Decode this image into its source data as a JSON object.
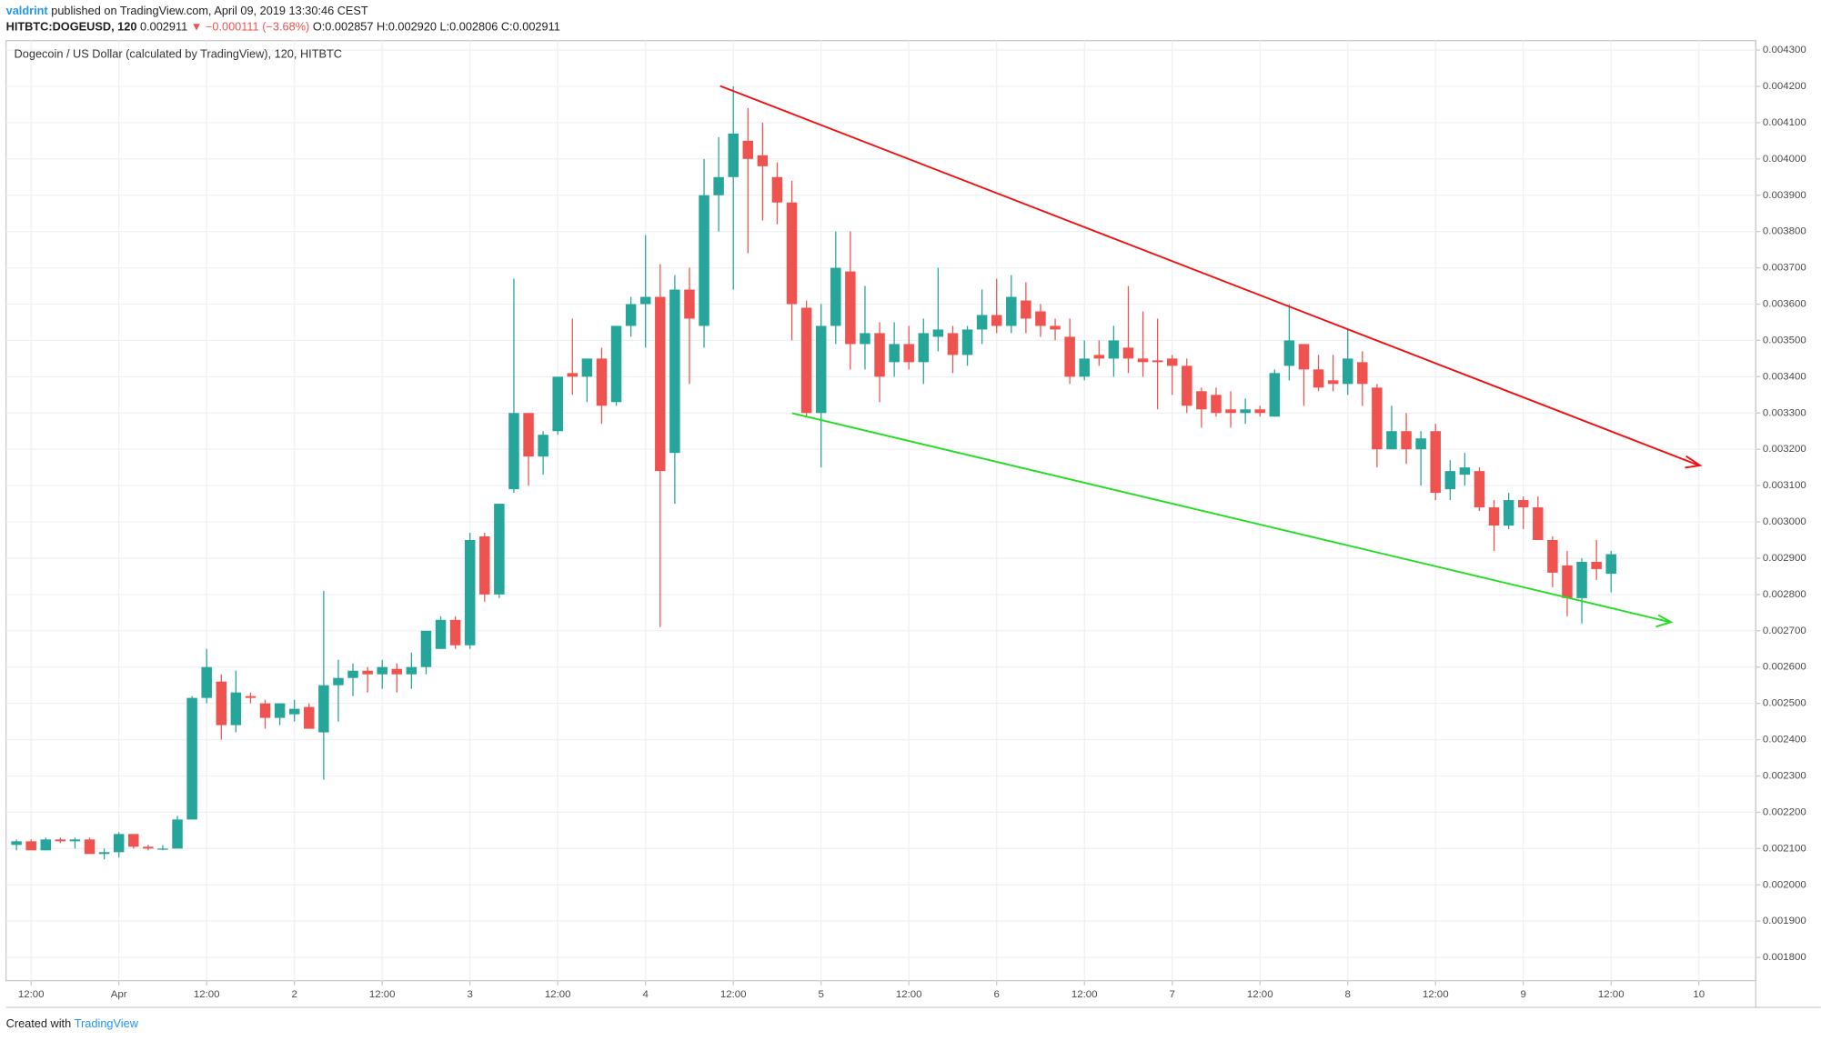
{
  "header": {
    "author": "valdrint",
    "published": "published on TradingView.com, April 09, 2019 13:30:46 CEST",
    "symbol": "HITBTC:DOGEUSD, 120",
    "last": "0.002911",
    "change": "▼ −0.000111 (−3.68%)",
    "ohlc": "O:0.002857 H:0.002920 L:0.002806 C:0.002911"
  },
  "footer": {
    "prefix": "Created with",
    "brand": "TradingView"
  },
  "chart_data": {
    "type": "candlestick",
    "title": "Dogecoin / US Dollar (calculated by TradingView), 120, HITBTC",
    "up_color": "#26a69a",
    "down_color": "#ef5350",
    "grid": true,
    "categories": [
      null,
      "12:00",
      null,
      null,
      null,
      null,
      null,
      "Apr",
      null,
      null,
      null,
      null,
      null,
      "12:00",
      null,
      null,
      null,
      null,
      null,
      "2",
      null,
      null,
      null,
      null,
      null,
      "12:00",
      null,
      null,
      null,
      null,
      null,
      "3",
      null,
      null,
      null,
      null,
      null,
      "12:00",
      null,
      null,
      null,
      null,
      null,
      "4",
      null,
      null,
      null,
      null,
      null,
      "12:00",
      null,
      null,
      null,
      null,
      null,
      "5",
      null,
      null,
      null,
      null,
      null,
      "12:00",
      null,
      null,
      null,
      null,
      null,
      "6",
      null,
      null,
      null,
      null,
      null,
      "12:00",
      null,
      null,
      null,
      null,
      null,
      "7",
      null,
      null,
      null,
      null,
      null,
      "12:00",
      null,
      null,
      null,
      null,
      null,
      "8",
      null,
      null,
      null,
      null,
      null,
      "12:00",
      null,
      null,
      null,
      null,
      null,
      "9",
      null,
      null,
      null,
      null,
      null,
      "12:00",
      null,
      null,
      null,
      null,
      null,
      "10",
      null,
      null,
      null,
      null
    ],
    "open": [
      0.00211,
      0.00212,
      0.002095,
      0.002125,
      0.00212,
      0.002125,
      0.002085,
      0.00209,
      0.00214,
      0.002105,
      0.0021,
      0.0021,
      0.00218,
      0.002515,
      0.00256,
      0.00244,
      0.00252,
      0.0025,
      0.00246,
      0.00247,
      0.00249,
      0.00242,
      0.00255,
      0.00257,
      0.00259,
      0.00258,
      0.002595,
      0.00258,
      0.0026,
      0.00265,
      0.00273,
      0.00266,
      0.00296,
      0.0028,
      0.00309,
      0.0033,
      0.00318,
      0.00325,
      0.00341,
      0.0034,
      0.00345,
      0.00333,
      0.00354,
      0.0036,
      0.00362,
      0.00319,
      0.00364,
      0.00354,
      0.0039,
      0.00395,
      0.00405,
      0.00401,
      0.00395,
      0.00388,
      0.00359,
      0.0033,
      0.00354,
      0.00369,
      0.00349,
      0.00352,
      0.00344,
      0.00349,
      0.00344,
      0.00351,
      0.00352,
      0.00346,
      0.00353,
      0.00357,
      0.00354,
      0.00361,
      0.00358,
      0.00354,
      0.00351,
      0.0034,
      0.00346,
      0.00345,
      0.00348,
      0.00345,
      0.003445,
      0.00345,
      0.00343,
      0.00336,
      0.00335,
      0.00331,
      0.0033,
      0.00331,
      0.00329,
      0.00343,
      0.00349,
      0.00342,
      0.00339,
      0.00338,
      0.00344,
      0.00337,
      0.0032,
      0.00325,
      0.0032,
      0.00325,
      0.00309,
      0.00313,
      0.00314,
      0.00304,
      0.00299,
      0.00306,
      0.00304,
      0.00295,
      0.00288,
      0.00279,
      0.00289,
      0.002857,
      null,
      null,
      null,
      null,
      null,
      null,
      null,
      null,
      null,
      null
    ],
    "high": [
      0.002125,
      0.002125,
      0.00213,
      0.00213,
      0.00213,
      0.00213,
      0.0021,
      0.002145,
      0.00214,
      0.00211,
      0.00211,
      0.00219,
      0.00252,
      0.00265,
      0.00258,
      0.00259,
      0.00253,
      0.00251,
      0.0025,
      0.00251,
      0.0025,
      0.00281,
      0.00262,
      0.00261,
      0.0026,
      0.00262,
      0.00261,
      0.00264,
      0.0027,
      0.00274,
      0.00274,
      0.00297,
      0.00297,
      0.00305,
      0.00367,
      0.0033,
      0.00325,
      0.0034,
      0.00356,
      0.00345,
      0.00348,
      0.00354,
      0.00362,
      0.00379,
      0.00371,
      0.00368,
      0.0037,
      0.004,
      0.00406,
      0.0042,
      0.00414,
      0.0041,
      0.00399,
      0.00394,
      0.00361,
      0.0036,
      0.0038,
      0.0038,
      0.00365,
      0.00355,
      0.00355,
      0.00354,
      0.00356,
      0.0037,
      0.00354,
      0.00354,
      0.00364,
      0.00367,
      0.00368,
      0.00366,
      0.0036,
      0.00356,
      0.00356,
      0.0035,
      0.0035,
      0.00354,
      0.00365,
      0.00358,
      0.00356,
      0.00346,
      0.00345,
      0.00337,
      0.00337,
      0.00336,
      0.00334,
      0.00332,
      0.00342,
      0.0036,
      0.00349,
      0.00346,
      0.00346,
      0.00353,
      0.00347,
      0.00338,
      0.00332,
      0.0033,
      0.00325,
      0.00327,
      0.00317,
      0.00319,
      0.00315,
      0.00306,
      0.00308,
      0.00307,
      0.00307,
      0.00296,
      0.00292,
      0.0029,
      0.00295,
      0.00292,
      null,
      null,
      null,
      null,
      null,
      null,
      null,
      null,
      null,
      null
    ],
    "low": [
      0.002095,
      0.0021,
      0.002095,
      0.002115,
      0.0021,
      0.00209,
      0.00207,
      0.002075,
      0.0021,
      0.002095,
      0.002095,
      0.0021,
      0.00218,
      0.0025,
      0.0024,
      0.00242,
      0.0025,
      0.00243,
      0.00244,
      0.00245,
      0.00243,
      0.00229,
      0.00245,
      0.00252,
      0.00253,
      0.00254,
      0.00253,
      0.00254,
      0.00258,
      0.00265,
      0.00265,
      0.00265,
      0.00278,
      0.00279,
      0.00308,
      0.0031,
      0.00313,
      0.00324,
      0.00335,
      0.00333,
      0.00327,
      0.00332,
      0.00351,
      0.00348,
      0.00271,
      0.00305,
      0.00338,
      0.00348,
      0.0038,
      0.00364,
      0.00374,
      0.00383,
      0.00382,
      0.0035,
      0.00329,
      0.00315,
      0.00349,
      0.00342,
      0.00342,
      0.00333,
      0.0034,
      0.00342,
      0.00338,
      0.00347,
      0.00341,
      0.00343,
      0.00349,
      0.00352,
      0.00352,
      0.00352,
      0.00351,
      0.0035,
      0.00338,
      0.00339,
      0.00343,
      0.0034,
      0.00341,
      0.0034,
      0.00331,
      0.00335,
      0.0033,
      0.00326,
      0.00329,
      0.00326,
      0.00327,
      0.00329,
      0.00329,
      0.00339,
      0.00332,
      0.00336,
      0.00336,
      0.00335,
      0.00332,
      0.00315,
      0.0032,
      0.00316,
      0.0031,
      0.00306,
      0.00306,
      0.0031,
      0.00303,
      0.00292,
      0.00298,
      0.00298,
      0.00295,
      0.00282,
      0.00274,
      0.00272,
      0.00284,
      0.002806,
      null,
      null,
      null,
      null,
      null,
      null,
      null,
      null,
      null,
      null
    ],
    "close": [
      0.00212,
      0.002095,
      0.002125,
      0.00212,
      0.002125,
      0.002085,
      0.00209,
      0.00214,
      0.002105,
      0.0021,
      0.0021,
      0.00218,
      0.002515,
      0.0026,
      0.00244,
      0.00253,
      0.002515,
      0.00246,
      0.0025,
      0.002485,
      0.00243,
      0.00255,
      0.00257,
      0.00259,
      0.00258,
      0.0026,
      0.00258,
      0.0026,
      0.0027,
      0.00273,
      0.00266,
      0.00295,
      0.0028,
      0.00305,
      0.0033,
      0.00318,
      0.00324,
      0.0034,
      0.0034,
      0.00345,
      0.00332,
      0.00354,
      0.0036,
      0.00362,
      0.00314,
      0.00364,
      0.00356,
      0.0039,
      0.00395,
      0.00407,
      0.004,
      0.00398,
      0.00388,
      0.0036,
      0.0033,
      0.00354,
      0.0037,
      0.00349,
      0.00352,
      0.0034,
      0.00349,
      0.00344,
      0.00352,
      0.00353,
      0.00346,
      0.00353,
      0.00357,
      0.00354,
      0.00362,
      0.00356,
      0.00354,
      0.00353,
      0.0034,
      0.00345,
      0.00345,
      0.0035,
      0.00345,
      0.00344,
      0.00344,
      0.00343,
      0.00332,
      0.00331,
      0.0033,
      0.0033,
      0.00331,
      0.0033,
      0.00341,
      0.0035,
      0.00342,
      0.00337,
      0.00338,
      0.00345,
      0.00338,
      0.0032,
      0.00325,
      0.0032,
      0.00323,
      0.00308,
      0.00314,
      0.00315,
      0.00304,
      0.00299,
      0.00306,
      0.00304,
      0.00295,
      0.00286,
      0.00279,
      0.00289,
      0.00287,
      0.002911,
      null,
      null,
      null,
      null,
      null,
      null,
      null,
      null,
      null,
      null
    ],
    "ylim": [
      0.001736,
      0.004326
    ],
    "yticks": [
      {
        "value": 0.0018,
        "label": "0.001800"
      },
      {
        "value": 0.0019,
        "label": "0.001900"
      },
      {
        "value": 0.002,
        "label": "0.002000"
      },
      {
        "value": 0.0021,
        "label": "0.002100"
      },
      {
        "value": 0.0022,
        "label": "0.002200"
      },
      {
        "value": 0.0023,
        "label": "0.002300"
      },
      {
        "value": 0.0024,
        "label": "0.002400"
      },
      {
        "value": 0.0025,
        "label": "0.002500"
      },
      {
        "value": 0.0026,
        "label": "0.002600"
      },
      {
        "value": 0.0027,
        "label": "0.002700"
      },
      {
        "value": 0.0028,
        "label": "0.002800"
      },
      {
        "value": 0.0029,
        "label": "0.002900"
      },
      {
        "value": 0.003,
        "label": "0.003000"
      },
      {
        "value": 0.0031,
        "label": "0.003100"
      },
      {
        "value": 0.0032,
        "label": "0.003200"
      },
      {
        "value": 0.0033,
        "label": "0.003300"
      },
      {
        "value": 0.0034,
        "label": "0.003400"
      },
      {
        "value": 0.0035,
        "label": "0.003500"
      },
      {
        "value": 0.0036,
        "label": "0.003600"
      },
      {
        "value": 0.0037,
        "label": "0.003700"
      },
      {
        "value": 0.0038,
        "label": "0.003800"
      },
      {
        "value": 0.0039,
        "label": "0.003900"
      },
      {
        "value": 0.004,
        "label": "0.004000"
      },
      {
        "value": 0.0041,
        "label": "0.004100"
      },
      {
        "value": 0.0042,
        "label": "0.004200"
      },
      {
        "value": 0.0043,
        "label": "0.004300"
      }
    ]
  }
}
